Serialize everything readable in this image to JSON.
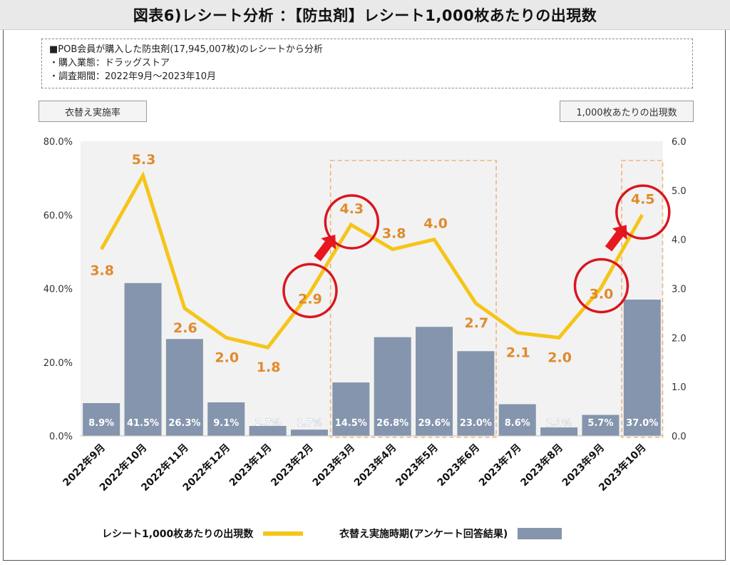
{
  "header": {
    "title": "図表6)レシート分析 ：【防虫剤】レシート1,000枚あたりの出現数"
  },
  "notes": [
    "■POB会員が購入した防虫剤(17,945,007枚)のレシートから分析",
    "・購入業態：ドラッグストア",
    "・調査期間：2022年9月～2023年10月"
  ],
  "axis_chips": {
    "left": "衣替え実施率",
    "right": "1,000枚あたりの出現数"
  },
  "legend": {
    "line_label": "レシート1,000枚あたりの出現数",
    "bar_label": "衣替え実施時期(アンケート回答結果)"
  },
  "colors": {
    "line": "#f5c518",
    "line_label": "#e08a2c",
    "bar": "#8495ad",
    "bar_label": "#ffffff",
    "plot_bg": "#f2f2f2",
    "highlight_box": "#f0b27a",
    "circle": "#d9161f",
    "arrow": "#e8161f"
  },
  "chart_data": {
    "type": "bar+line",
    "categories": [
      "2022年9月",
      "2022年10月",
      "2022年11月",
      "2022年12月",
      "2023年1月",
      "2023年2月",
      "2023年3月",
      "2023年4月",
      "2023年5月",
      "2023年6月",
      "2023年7月",
      "2023年8月",
      "2023年9月",
      "2023年10月"
    ],
    "bar_series": {
      "name": "衣替え実施時期(アンケート回答結果)",
      "axis": "left",
      "values": [
        8.9,
        41.5,
        26.3,
        9.1,
        2.7,
        1.7,
        14.5,
        26.8,
        29.6,
        23.0,
        8.6,
        2.3,
        5.7,
        37.0
      ],
      "labels": [
        "8.9%",
        "41.5%",
        "26.3%",
        "9.1%",
        "2.7%",
        "1.7%",
        "14.5%",
        "26.8%",
        "29.6%",
        "23.0%",
        "8.6%",
        "2.3%",
        "5.7%",
        "37.0%"
      ]
    },
    "line_series": {
      "name": "レシート1,000枚あたりの出現数",
      "axis": "right",
      "values": [
        3.8,
        5.3,
        2.6,
        2.0,
        1.8,
        2.9,
        4.3,
        3.8,
        4.0,
        2.7,
        2.1,
        2.0,
        3.0,
        4.5
      ],
      "labels": [
        "3.8",
        "5.3",
        "2.6",
        "2.0",
        "1.8",
        "2.9",
        "4.3",
        "3.8",
        "4.0",
        "2.7",
        "2.1",
        "2.0",
        "3.0",
        "4.5"
      ]
    },
    "y_left": {
      "ylim": [
        0,
        80
      ],
      "ticks": [
        "0.0%",
        "20.0%",
        "40.0%",
        "60.0%",
        "80.0%"
      ]
    },
    "y_right": {
      "ylim": [
        0,
        6
      ],
      "ticks": [
        "0.0",
        "1.0",
        "2.0",
        "3.0",
        "4.0",
        "5.0",
        "6.0"
      ]
    },
    "highlight_ranges": [
      {
        "from": "2023年3月",
        "to": "2023年6月"
      },
      {
        "from": "2023年10月",
        "to": "2023年10月"
      }
    ],
    "circled_points": [
      "2023年2月",
      "2023年3月",
      "2023年9月",
      "2023年10月"
    ],
    "arrows": [
      {
        "from": "2023年2月",
        "to": "2023年3月"
      },
      {
        "from": "2023年9月",
        "to": "2023年10月"
      }
    ],
    "grid": false,
    "legend_position": "bottom"
  }
}
